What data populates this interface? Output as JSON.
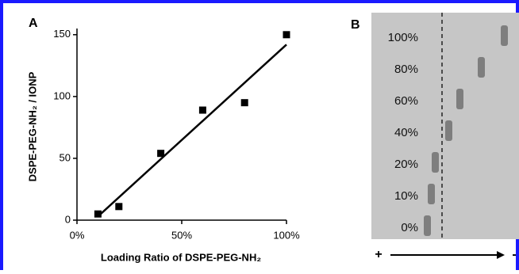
{
  "chart_data": {
    "type": "scatter",
    "panel_label": "A",
    "x_label": "Loading Ratio of DSPE-PEG-NH₂",
    "y_label": "DSPE-PEG-NH₂ / IONP",
    "x": [
      10,
      20,
      40,
      60,
      80,
      100
    ],
    "values": [
      5,
      11,
      54,
      89,
      95,
      150
    ],
    "color": "#000000",
    "fit": {
      "x": [
        10,
        100
      ],
      "values": [
        3,
        142
      ]
    },
    "xlim": [
      0,
      100
    ],
    "xticks": [
      {
        "value": 0,
        "label": "0%"
      },
      {
        "value": 50,
        "label": "50%"
      },
      {
        "value": 100,
        "label": "100%"
      }
    ],
    "ylim": [
      0,
      155
    ],
    "yticks": [
      0,
      50,
      100,
      150
    ]
  },
  "gel": {
    "panel_label": "B",
    "lanes": [
      "100%",
      "80%",
      "60%",
      "40%",
      "20%",
      "10%",
      "0%"
    ],
    "anode": "+",
    "cathode": "-"
  }
}
